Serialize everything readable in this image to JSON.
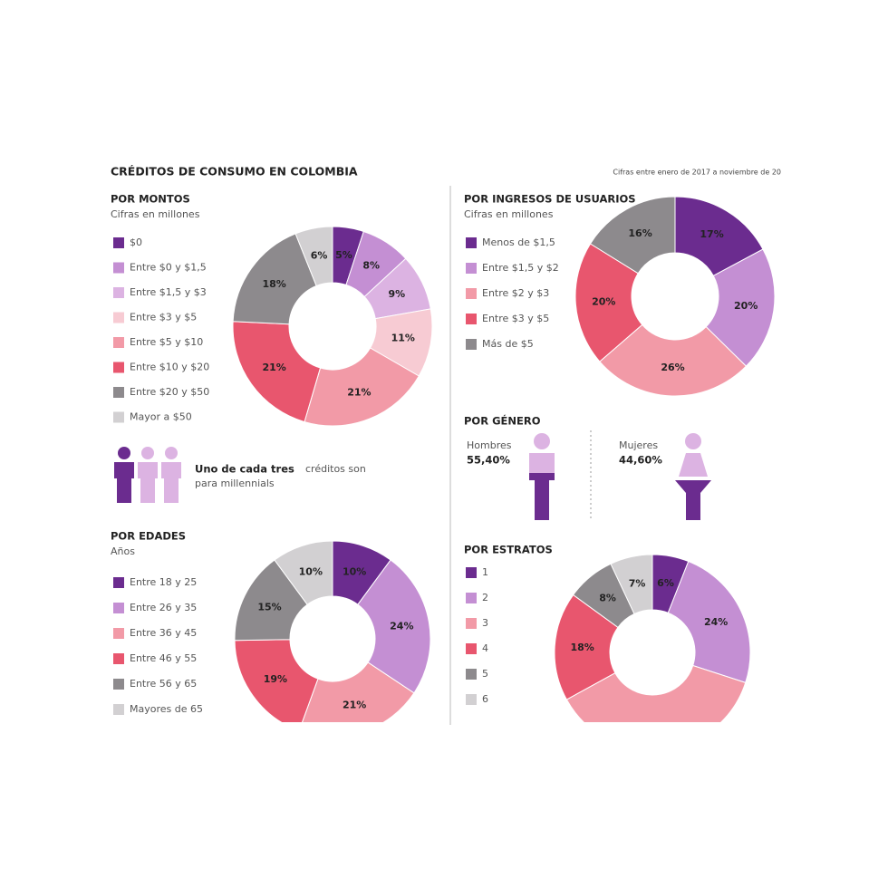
{
  "header": {
    "title": "CRÉDITOS DE CONSUMO EN COLOMBIA",
    "note": "Cifras entre enero de 2017 a noviembre de 20"
  },
  "callout": {
    "bold": "Uno de cada tres",
    "text": "créditos son",
    "text2": "para millennials"
  },
  "chart_data": [
    {
      "type": "donut",
      "title": "POR MONTOS",
      "subtitle": "Cifras en millones",
      "categories": [
        "$0",
        "Entre $0 y $1,5",
        "Entre $1,5 y $3",
        "Entre $3 y $5",
        "Entre $5 y $10",
        "Entre $10 y $20",
        "Entre $20 y $50",
        "Mayor a $50"
      ],
      "values": [
        5,
        8,
        9,
        11,
        21,
        21,
        18,
        6
      ],
      "value_labels": [
        "5%",
        "8%",
        "9%",
        "11%",
        "21%",
        "21%",
        "18%",
        "6%"
      ],
      "colors": [
        "#6b2c8f",
        "#c48fd3",
        "#dcb3e2",
        "#f7cbd3",
        "#f29aa7",
        "#e8566e",
        "#8d8a8d",
        "#d2d0d2"
      ]
    },
    {
      "type": "donut",
      "title": "POR INGRESOS DE USUARIOS",
      "subtitle": "Cifras en millones",
      "categories": [
        "Menos de $1,5",
        "Entre $1,5 y $2",
        "Entre $2 y $3",
        "Entre $3 y $5",
        "Más de $5"
      ],
      "values": [
        17,
        20,
        26,
        20,
        16
      ],
      "value_labels": [
        "17%",
        "20%",
        "26%",
        "20%",
        "16%"
      ],
      "colors": [
        "#6b2c8f",
        "#c48fd3",
        "#f29aa7",
        "#e8566e",
        "#8d8a8d"
      ]
    },
    {
      "type": "pictogram",
      "title": "POR GÉNERO",
      "categories": [
        "Hombres",
        "Mujeres"
      ],
      "values": [
        55.4,
        44.6
      ],
      "value_labels": [
        "55,40%",
        "44,60%"
      ],
      "colors": [
        "#6b2c8f",
        "#dcb3e2"
      ]
    },
    {
      "type": "donut",
      "title": "POR EDADES",
      "subtitle": "Años",
      "categories": [
        "Entre 18 y 25",
        "Entre 26 y 35",
        "Entre 36 y 45",
        "Entre 46 y 55",
        "Entre 56 y 65",
        "Mayores de 65"
      ],
      "values": [
        10,
        24,
        21,
        19,
        15,
        10
      ],
      "value_labels": [
        "10%",
        "24%",
        "21%",
        "19%",
        "15%",
        "10%"
      ],
      "colors": [
        "#6b2c8f",
        "#c48fd3",
        "#f29aa7",
        "#e8566e",
        "#8d8a8d",
        "#d2d0d2"
      ]
    },
    {
      "type": "donut",
      "title": "POR ESTRATOS",
      "categories": [
        "1",
        "2",
        "3",
        "4",
        "5",
        "6"
      ],
      "values": [
        6,
        24,
        37,
        18,
        8,
        7
      ],
      "value_labels": [
        "6%",
        "24%",
        null,
        "18%",
        "8%",
        "7%"
      ],
      "colors": [
        "#6b2c8f",
        "#c48fd3",
        "#f29aa7",
        "#e8566e",
        "#8d8a8d",
        "#d2d0d2"
      ]
    }
  ]
}
